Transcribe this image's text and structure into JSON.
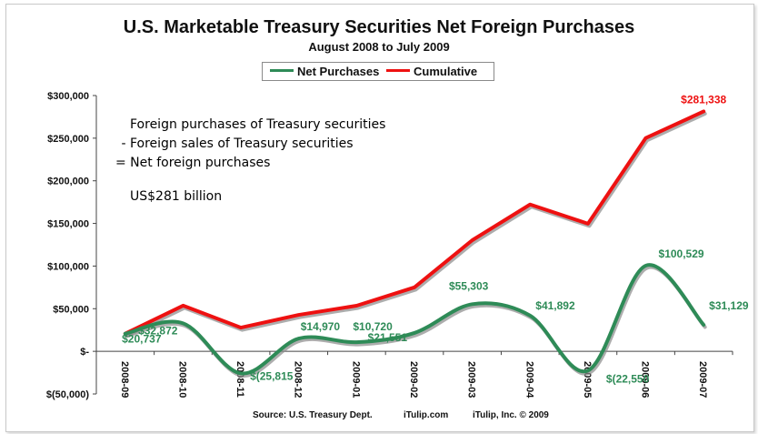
{
  "chart_data": {
    "type": "line",
    "title": "U.S. Marketable Treasury Securities Net Foreign Purchases",
    "subtitle": "August 2008 to July 2009",
    "categories": [
      "2008-09",
      "2008-10",
      "2008-11",
      "2008-12",
      "2009-01",
      "2009-02",
      "2009-03",
      "2009-04",
      "2009-05",
      "2009-06",
      "2009-07"
    ],
    "y_ticks": [
      {
        "value": 300000,
        "label": "$300,000"
      },
      {
        "value": 250000,
        "label": "$250,000"
      },
      {
        "value": 200000,
        "label": "$200,000"
      },
      {
        "value": 150000,
        "label": "$150,000"
      },
      {
        "value": 100000,
        "label": "$100,000"
      },
      {
        "value": 50000,
        "label": "$50,000"
      },
      {
        "value": 0,
        "label": "$-"
      },
      {
        "value": -50000,
        "label": "$(50,000)"
      }
    ],
    "ylim": [
      -50000,
      300000
    ],
    "grid": false,
    "legend_position": "top-center",
    "series": [
      {
        "name": "Net Purchases",
        "color": "#2e8b57",
        "smooth": true,
        "values": [
          20737,
          32872,
          -25815,
          14970,
          10720,
          21551,
          55303,
          41892,
          -22550,
          100529,
          31129
        ],
        "labels": [
          "$20,737",
          "$32,872",
          "$(25,815",
          "$14,970",
          "$10,720",
          "$21,551",
          "$55,303",
          "$41,892",
          "$(22,550",
          "$100,529",
          "$31,129"
        ]
      },
      {
        "name": "Cumulative",
        "color": "#ee1111",
        "smooth": false,
        "values": [
          20737,
          53609,
          27794,
          42764,
          53484,
          75035,
          130338,
          172230,
          149680,
          250209,
          281338
        ],
        "labels": [
          "",
          "",
          "",
          "",
          "",
          "",
          "",
          "",
          "",
          "",
          "$281,338"
        ]
      }
    ],
    "annotations": [
      "Foreign purchases of Treasury securities",
      " - Foreign sales of Treasury securities",
      "= Net foreign purchases",
      "US$281 billion"
    ],
    "source": {
      "credit": "Source: U.S. Treasury Dept.",
      "site": "iTulip.com",
      "copyright": "iTulip, Inc. © 2009"
    }
  }
}
